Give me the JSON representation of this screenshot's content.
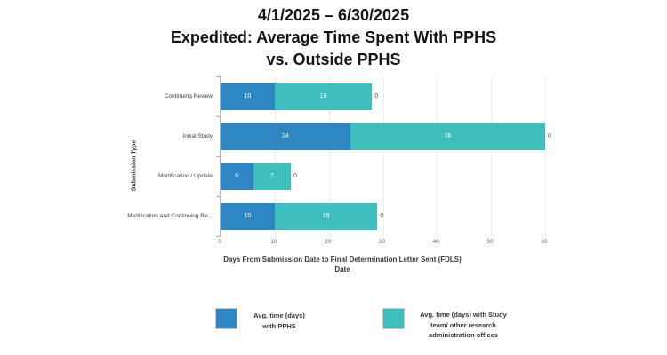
{
  "title": {
    "lines": [
      "4/1/2025 – 6/30/2025",
      "Expedited: Average Time Spent With PPHS",
      "vs. Outside PPHS"
    ]
  },
  "chart_data": {
    "type": "bar",
    "orientation": "horizontal",
    "stacked": true,
    "title": "4/1/2025 – 6/30/2025 Expedited: Average Time Spent With PPHS vs. Outside PPHS",
    "categories": [
      "Continuing Review",
      "Initial Study",
      "Modification / Update",
      "Modification and Continuing Re..."
    ],
    "series": [
      {
        "name": "Avg. time (days) with PPHS",
        "color": "#2e86c3",
        "values": [
          10,
          24,
          6,
          10
        ]
      },
      {
        "name": "Avg. time (days) with Study team/ other research administration offices",
        "color": "#3ebebd",
        "values": [
          18,
          36,
          7,
          19
        ]
      }
    ],
    "bar_end_labels": [
      "0",
      "0",
      "0",
      "0"
    ],
    "xlabel": "Days From Submission Date to Final Determination Letter Sent (FDLS)\nDate",
    "ylabel": "Submission Type",
    "xticks": [
      0,
      10,
      20,
      30,
      40,
      50,
      60
    ],
    "xlim": [
      0,
      60
    ],
    "grid": "vertical-light",
    "legend_position": "bottom"
  },
  "legend": {
    "items": [
      {
        "label": "Avg. time (days)\nwith PPHS",
        "color": "#2e86c3"
      },
      {
        "label": "Avg. time (days) with Study\nteam/ other research\nadministration offices",
        "color": "#3ebebd"
      }
    ]
  }
}
